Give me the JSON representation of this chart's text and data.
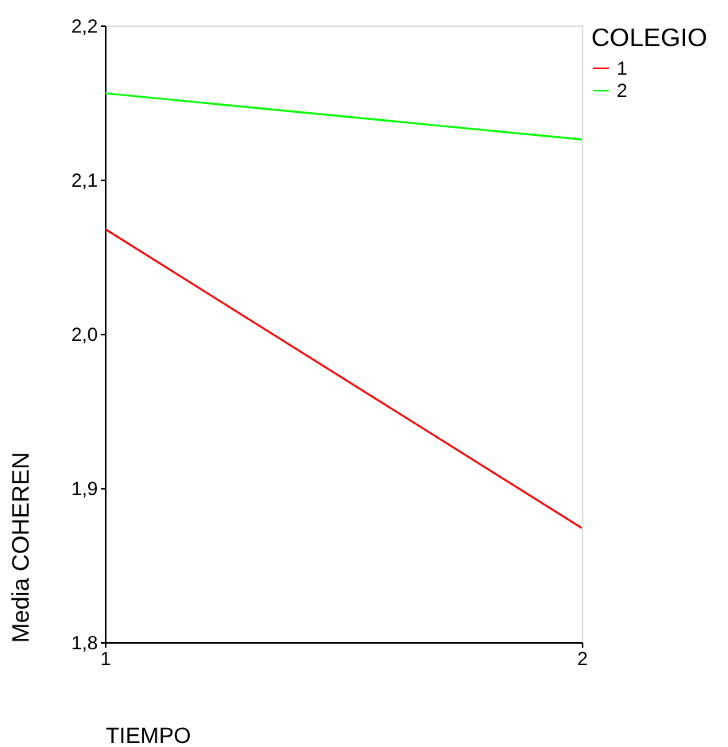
{
  "chart_data": {
    "type": "line",
    "xlabel": "TIEMPO",
    "ylabel": "Media COHEREN",
    "legend_title": "COLEGIO",
    "x": [
      1,
      2
    ],
    "xlim": [
      1,
      2
    ],
    "xticks": [
      1,
      2
    ],
    "ylim": [
      1.8,
      2.2
    ],
    "yticks": [
      {
        "value": 1.8,
        "label": "1,8"
      },
      {
        "value": 1.9,
        "label": "1,9"
      },
      {
        "value": 2.0,
        "label": "2,0"
      },
      {
        "value": 2.1,
        "label": "2,1"
      },
      {
        "value": 2.2,
        "label": "2,2"
      }
    ],
    "series": [
      {
        "name": "1",
        "color": "#ff0000",
        "values": [
          2.068,
          1.874
        ]
      },
      {
        "name": "2",
        "color": "#00ff00",
        "values": [
          2.156,
          2.126
        ]
      }
    ],
    "grid": false,
    "legend": "right",
    "marker": "none",
    "line_style": "solid"
  }
}
